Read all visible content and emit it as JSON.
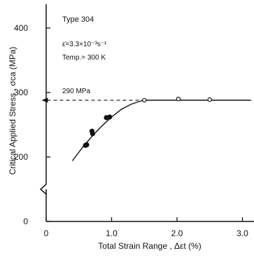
{
  "chart_data": {
    "type": "scatter",
    "title": "",
    "xlabel": "Total Strain Range , Δεt  (%)",
    "ylabel": "Critical Applied Stress , σca (MPa)",
    "xlim": [
      0,
      3.0
    ],
    "ylim": [
      0,
      450
    ],
    "y_axis_break": true,
    "x_ticks": [
      0,
      1.0,
      2.0,
      3.0
    ],
    "x_tick_labels": [
      "0",
      "1.0",
      "2.0",
      "3.0"
    ],
    "y_ticks": [
      0,
      200,
      300,
      400
    ],
    "y_tick_labels": [
      "0",
      "200",
      "300",
      "400"
    ],
    "annotations": {
      "material": "Type 304",
      "strain_rate": "ε̇=3.3×10⁻³s⁻¹",
      "temperature": "Temp.= 300 K",
      "threshold_label": "290 MPa",
      "threshold_value": 290
    },
    "series": [
      {
        "marker": "filled-circle",
        "color": "#111111",
        "x": [
          0.6,
          0.62,
          0.7,
          0.71,
          0.92,
          0.97
        ],
        "y": [
          218,
          219,
          240,
          236,
          261,
          262
        ]
      },
      {
        "marker": "open-circle",
        "color": "#111111",
        "x": [
          1.5,
          2.02,
          2.5
        ],
        "y": [
          288,
          290,
          289
        ]
      }
    ],
    "trend_curve": {
      "x": [
        0.4,
        0.55,
        0.7,
        0.85,
        1.0,
        1.15,
        1.3,
        1.45,
        1.5,
        2.0,
        2.5,
        3.13
      ],
      "y": [
        194,
        214,
        232,
        248,
        262,
        274,
        282,
        287,
        288,
        288,
        288,
        288
      ]
    },
    "dashed_line": {
      "x_start": -0.07,
      "x_end": 1.5,
      "y": 288
    }
  }
}
